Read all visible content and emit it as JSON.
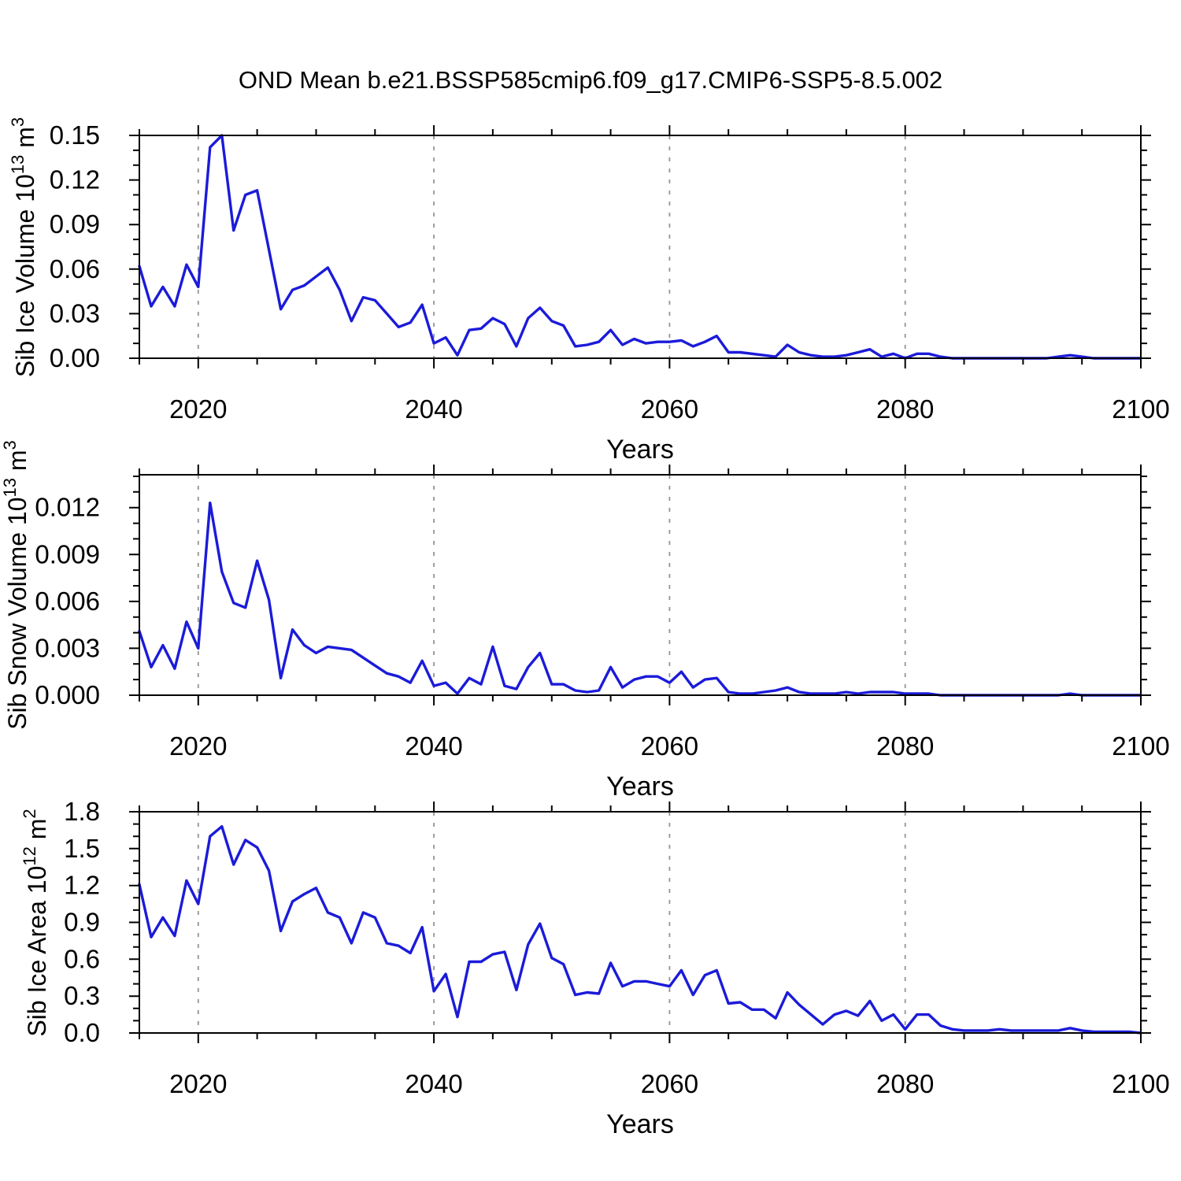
{
  "title": "OND Mean b.e21.BSSP585cmip6.f09_g17.CMIP6-SSP5-8.5.002",
  "chart_data": {
    "type": "line",
    "title": "OND Mean b.e21.BSSP585cmip6.f09_g17.CMIP6-SSP5-8.5.002",
    "xlabel": "Years",
    "x_range": [
      2015,
      2100
    ],
    "x_ticks": [
      2020,
      2040,
      2060,
      2080,
      2100
    ],
    "x_tick_labels": [
      "2020",
      "2040",
      "2060",
      "2080",
      "2100"
    ],
    "x_minor_step": 5,
    "grid_x": [
      2020,
      2040,
      2060,
      2080
    ],
    "grid_style": "dashed-gray-vertical",
    "line_color": "#1b1bd9",
    "years": [
      2015,
      2016,
      2017,
      2018,
      2019,
      2020,
      2021,
      2022,
      2023,
      2024,
      2025,
      2026,
      2027,
      2028,
      2029,
      2030,
      2031,
      2032,
      2033,
      2034,
      2035,
      2036,
      2037,
      2038,
      2039,
      2040,
      2041,
      2042,
      2043,
      2044,
      2045,
      2046,
      2047,
      2048,
      2049,
      2050,
      2051,
      2052,
      2053,
      2054,
      2055,
      2056,
      2057,
      2058,
      2059,
      2060,
      2061,
      2062,
      2063,
      2064,
      2065,
      2066,
      2067,
      2068,
      2069,
      2070,
      2071,
      2072,
      2073,
      2074,
      2075,
      2076,
      2077,
      2078,
      2079,
      2080,
      2081,
      2082,
      2083,
      2084,
      2085,
      2086,
      2087,
      2088,
      2089,
      2090,
      2091,
      2092,
      2093,
      2094,
      2095,
      2096,
      2097,
      2098,
      2099,
      2100
    ],
    "panels": [
      {
        "name": "sib-ice-volume",
        "ylabel": "Sib Ice Volume 10^13 m^3",
        "ylabel_parts": [
          {
            "text": "Sib Ice Volume 10"
          },
          {
            "text": "13",
            "sup": true
          },
          {
            "text": " m"
          },
          {
            "text": "3",
            "sup": true
          }
        ],
        "ylim": [
          0,
          0.15
        ],
        "ytick_vals": [
          0.0,
          0.03,
          0.06,
          0.09,
          0.12,
          0.15
        ],
        "ytick_labels": [
          "0.00",
          "0.03",
          "0.06",
          "0.09",
          "0.12",
          "0.15"
        ],
        "y_minor_step": 0.01,
        "values": [
          0.062,
          0.035,
          0.048,
          0.035,
          0.063,
          0.048,
          0.142,
          0.15,
          0.086,
          0.11,
          0.113,
          0.073,
          0.033,
          0.046,
          0.049,
          0.055,
          0.061,
          0.046,
          0.025,
          0.041,
          0.039,
          0.03,
          0.021,
          0.024,
          0.036,
          0.01,
          0.014,
          0.002,
          0.019,
          0.02,
          0.027,
          0.023,
          0.008,
          0.027,
          0.034,
          0.025,
          0.022,
          0.008,
          0.009,
          0.011,
          0.019,
          0.009,
          0.013,
          0.01,
          0.011,
          0.011,
          0.012,
          0.008,
          0.011,
          0.015,
          0.004,
          0.004,
          0.003,
          0.002,
          0.001,
          0.009,
          0.004,
          0.002,
          0.001,
          0.001,
          0.002,
          0.004,
          0.006,
          0.001,
          0.003,
          0.0,
          0.003,
          0.003,
          0.001,
          0.0,
          0.0,
          0.0,
          0.0,
          0.0,
          0.0,
          0.0,
          0.0,
          0.0,
          0.001,
          0.002,
          0.001,
          0.0,
          0.0,
          0.0,
          0.0,
          0.0
        ]
      },
      {
        "name": "sib-snow-volume",
        "ylabel": "Sib Snow Volume 10^13 m^3",
        "ylabel_parts": [
          {
            "text": "Sib Snow Volume 10"
          },
          {
            "text": "13",
            "sup": true
          },
          {
            "text": " m"
          },
          {
            "text": "3",
            "sup": true
          }
        ],
        "ylim": [
          0,
          0.0141
        ],
        "ytick_vals": [
          0.0,
          0.003,
          0.006,
          0.009,
          0.012
        ],
        "ytick_labels": [
          "0.000",
          "0.003",
          "0.006",
          "0.009",
          "0.012"
        ],
        "y_minor_step": 0.001,
        "values": [
          0.0041,
          0.0018,
          0.0032,
          0.0017,
          0.0047,
          0.003,
          0.0123,
          0.0079,
          0.0059,
          0.0056,
          0.0086,
          0.0061,
          0.0011,
          0.0042,
          0.0032,
          0.0027,
          0.0031,
          0.003,
          0.0029,
          0.0024,
          0.0019,
          0.0014,
          0.0012,
          0.0008,
          0.0022,
          0.0006,
          0.0008,
          0.0001,
          0.0011,
          0.0007,
          0.0031,
          0.0006,
          0.0004,
          0.0018,
          0.0027,
          0.0007,
          0.0007,
          0.0003,
          0.0002,
          0.0003,
          0.0018,
          0.0005,
          0.001,
          0.0012,
          0.0012,
          0.0008,
          0.0015,
          0.0005,
          0.001,
          0.0011,
          0.0002,
          0.0001,
          0.0001,
          0.0002,
          0.0003,
          0.0005,
          0.0002,
          0.0001,
          0.0001,
          0.0001,
          0.0002,
          0.0001,
          0.0002,
          0.0002,
          0.0002,
          0.0001,
          0.0001,
          0.0001,
          0.0,
          0.0,
          0.0,
          0.0,
          0.0,
          0.0,
          0.0,
          0.0,
          0.0,
          0.0,
          0.0,
          0.0001,
          0.0,
          0.0,
          0.0,
          0.0,
          0.0,
          0.0
        ]
      },
      {
        "name": "sib-ice-area",
        "ylabel": "Sib Ice Area 10^12 m^2",
        "ylabel_parts": [
          {
            "text": "Sib Ice Area 10"
          },
          {
            "text": "12",
            "sup": true
          },
          {
            "text": " m"
          },
          {
            "text": "2",
            "sup": true
          }
        ],
        "ylim": [
          0,
          1.8
        ],
        "ytick_vals": [
          0.0,
          0.3,
          0.6,
          0.9,
          1.2,
          1.5,
          1.8
        ],
        "ytick_labels": [
          "0.0",
          "0.3",
          "0.6",
          "0.9",
          "1.2",
          "1.5",
          "1.8"
        ],
        "y_minor_step": 0.1,
        "values": [
          1.21,
          0.78,
          0.94,
          0.79,
          1.24,
          1.05,
          1.6,
          1.68,
          1.37,
          1.57,
          1.51,
          1.32,
          0.83,
          1.07,
          1.13,
          1.18,
          0.98,
          0.94,
          0.73,
          0.98,
          0.94,
          0.73,
          0.71,
          0.65,
          0.86,
          0.34,
          0.48,
          0.13,
          0.58,
          0.58,
          0.64,
          0.66,
          0.35,
          0.72,
          0.89,
          0.61,
          0.56,
          0.31,
          0.33,
          0.32,
          0.57,
          0.38,
          0.42,
          0.42,
          0.4,
          0.38,
          0.51,
          0.31,
          0.47,
          0.51,
          0.24,
          0.25,
          0.19,
          0.19,
          0.12,
          0.33,
          0.23,
          0.15,
          0.07,
          0.15,
          0.18,
          0.14,
          0.26,
          0.1,
          0.15,
          0.03,
          0.15,
          0.15,
          0.06,
          0.03,
          0.02,
          0.02,
          0.02,
          0.03,
          0.02,
          0.02,
          0.02,
          0.02,
          0.02,
          0.04,
          0.02,
          0.01,
          0.01,
          0.01,
          0.01,
          0.0
        ]
      }
    ]
  }
}
